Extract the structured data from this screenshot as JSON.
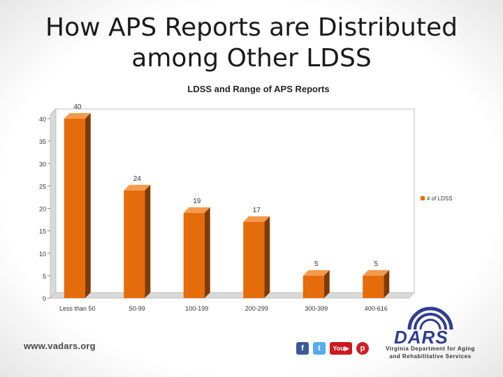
{
  "slide": {
    "title_line1": "How APS Reports are Distributed",
    "title_line2": "among Other LDSS",
    "footer_url": "www.vadars.org",
    "social_icons": [
      "facebook-icon",
      "twitter-icon",
      "youtube-icon",
      "pinterest-icon"
    ],
    "logo": {
      "name": "DARS",
      "subtitle_line1": "Virginia Department for Aging",
      "subtitle_line2": "and Rehabilitative Services"
    }
  },
  "chart_data": {
    "type": "bar",
    "title": "LDSS and Range of APS Reports",
    "categories": [
      "Less than 50",
      "50-99",
      "100-199",
      "200-299",
      "300-399",
      "400-616"
    ],
    "series": [
      {
        "name": "# of LDSS",
        "values": [
          40,
          24,
          19,
          17,
          5,
          5
        ]
      }
    ],
    "data_labels": [
      "40",
      "24",
      "19",
      "17",
      "5",
      "5"
    ],
    "ylim": [
      0,
      40
    ],
    "yticks": [
      0,
      5,
      10,
      15,
      20,
      25,
      30,
      35,
      40
    ],
    "grid": false,
    "legend": "right",
    "style": "3d",
    "colors": {
      "bar_front": "#E46C0A",
      "bar_side": "#7F3A05",
      "bar_top": "#F59A4A",
      "wall": "#d9d9d9"
    }
  }
}
